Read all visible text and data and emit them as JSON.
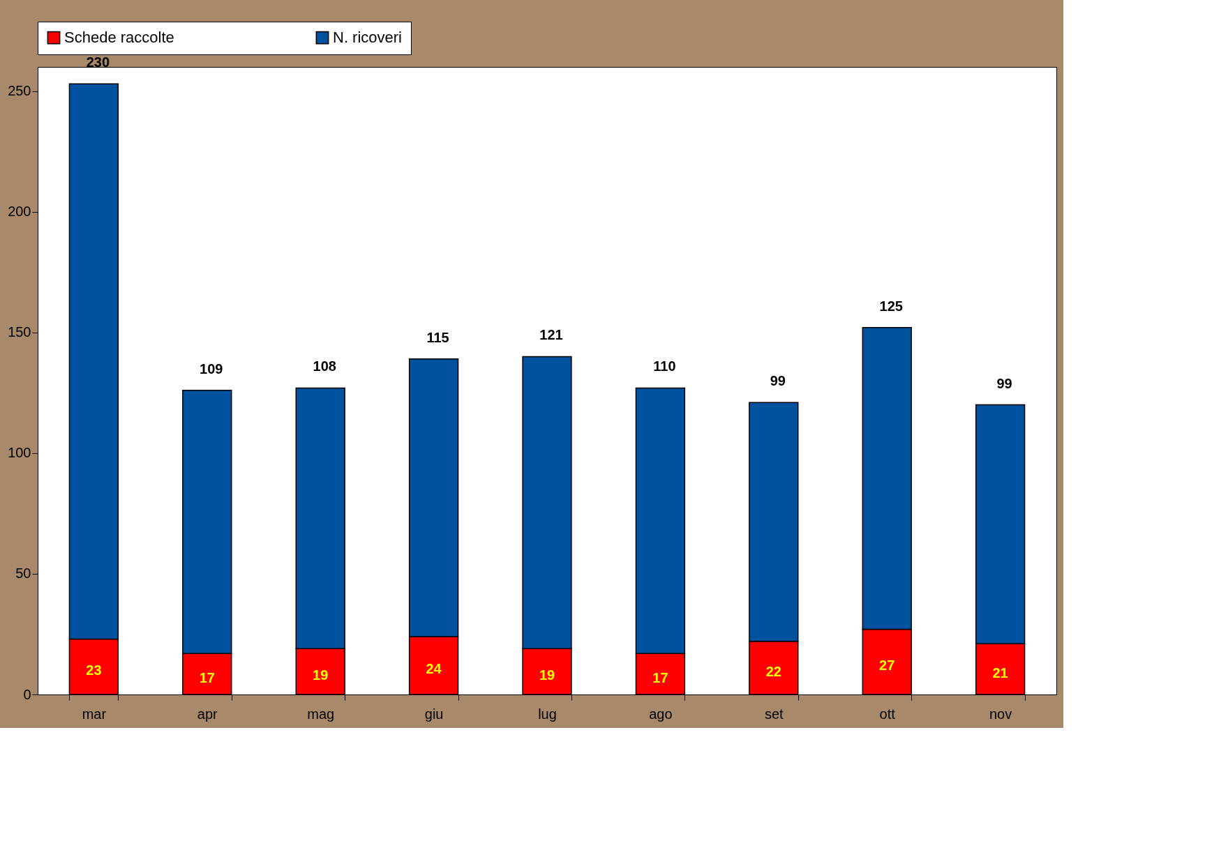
{
  "chart_data": {
    "type": "bar",
    "stacked": true,
    "categories": [
      "mar",
      "apr",
      "mag",
      "giu",
      "lug",
      "ago",
      "set",
      "ott",
      "nov"
    ],
    "series": [
      {
        "name": "Schede raccolte",
        "color": "#ff0000",
        "values": [
          23,
          17,
          19,
          24,
          19,
          17,
          22,
          27,
          21
        ]
      },
      {
        "name": "N. ricoveri",
        "color": "#00519e",
        "values": [
          230,
          109,
          108,
          115,
          121,
          110,
          99,
          125,
          99
        ]
      }
    ],
    "ylim": [
      0,
      260
    ],
    "yticks": [
      0,
      50,
      100,
      150,
      200,
      250
    ],
    "grid": false,
    "legend": "top",
    "data_labels": true
  }
}
